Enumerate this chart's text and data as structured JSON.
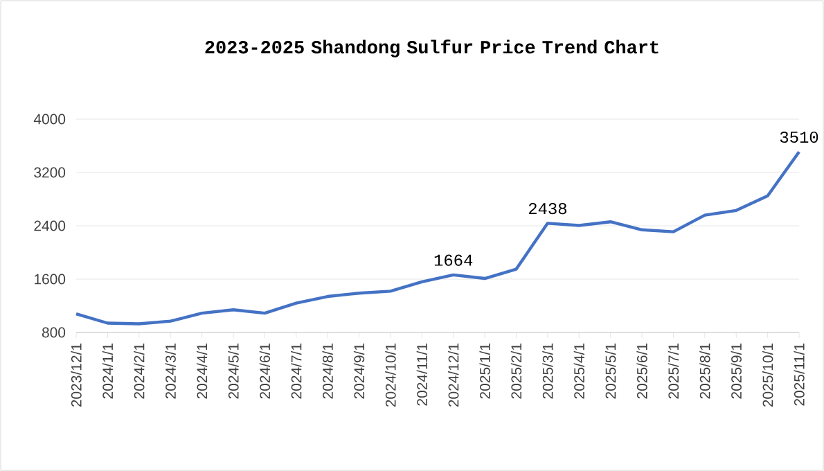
{
  "chart_data": {
    "type": "line",
    "title": "2023-2025 Shandong Sulfur Price Trend Chart",
    "categories": [
      "2023/12/1",
      "2024/1/1",
      "2024/2/1",
      "2024/3/1",
      "2024/4/1",
      "2024/5/1",
      "2024/6/1",
      "2024/7/1",
      "2024/8/1",
      "2024/9/1",
      "2024/10/1",
      "2024/11/1",
      "2024/12/1",
      "2025/1/1",
      "2025/2/1",
      "2025/3/1",
      "2025/4/1",
      "2025/5/1",
      "2025/6/1",
      "2025/7/1",
      "2025/8/1",
      "2025/9/1",
      "2025/10/1",
      "2025/11/1"
    ],
    "values": [
      1080,
      940,
      930,
      970,
      1090,
      1140,
      1090,
      1240,
      1340,
      1390,
      1420,
      1560,
      1664,
      1610,
      1750,
      2438,
      2405,
      2460,
      2340,
      2310,
      2560,
      2630,
      2850,
      3510
    ],
    "value_labels": [
      null,
      null,
      null,
      null,
      null,
      null,
      null,
      null,
      null,
      null,
      null,
      null,
      "1664",
      null,
      null,
      "2438",
      null,
      null,
      null,
      null,
      null,
      null,
      null,
      "3510"
    ],
    "color": "#4472c4",
    "ylim": [
      800,
      4000
    ],
    "yticks": [
      800,
      1600,
      2400,
      3200,
      4000
    ],
    "grid": "y",
    "marker": "none",
    "line_style": "solid"
  }
}
